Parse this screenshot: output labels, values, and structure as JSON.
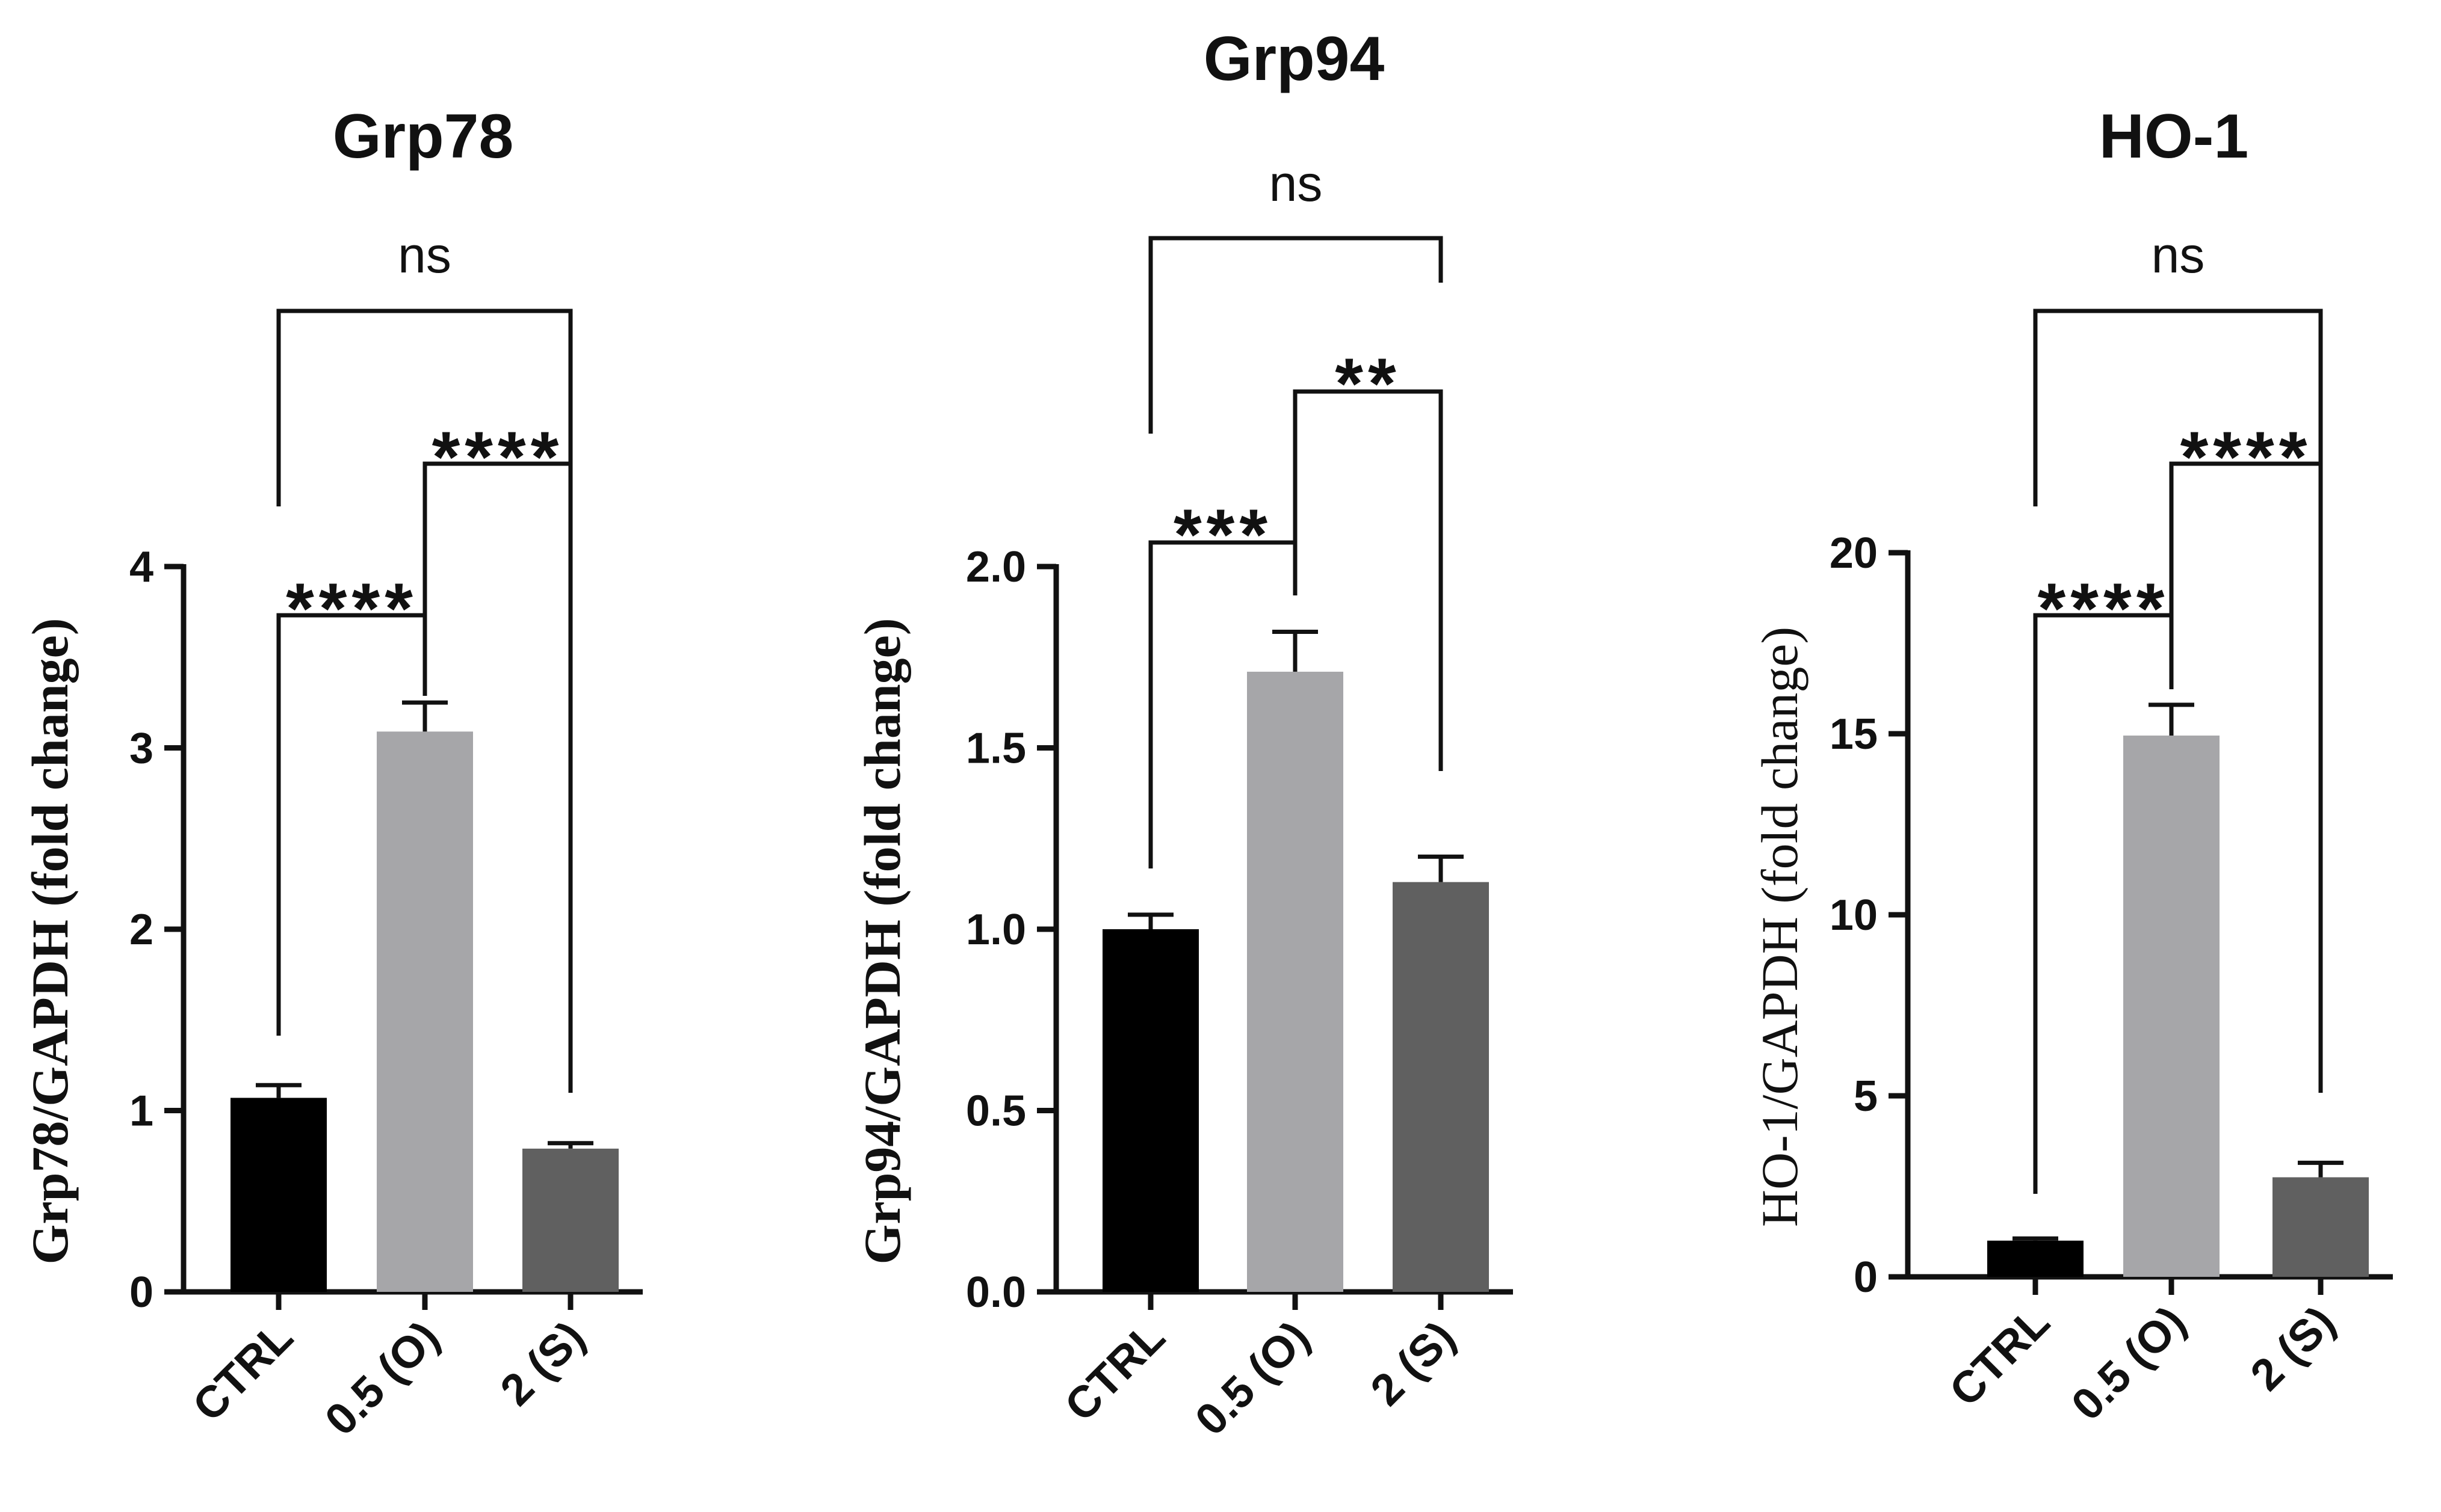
{
  "chart_data": [
    {
      "type": "bar",
      "title": "Grp78",
      "ylabel": "Grp78/GAPDH (fold change)",
      "categories": [
        "CTRL",
        "0.5 (O)",
        "2 (S)"
      ],
      "values": [
        1.07,
        3.09,
        0.79
      ],
      "errors": [
        0.07,
        0.16,
        0.03
      ],
      "colors": [
        "#000000",
        "#a6a6a9",
        "#606060"
      ],
      "ylim": [
        0,
        4
      ],
      "yticks": [
        0,
        1,
        2,
        3,
        4
      ],
      "comparisons": [
        {
          "a": 0,
          "b": 1,
          "label": "****"
        },
        {
          "a": 1,
          "b": 2,
          "label": "****"
        },
        {
          "a": 0,
          "b": 2,
          "label": "ns"
        }
      ]
    },
    {
      "type": "bar",
      "title": "Grp94",
      "ylabel": "Grp94/GAPDH (fold change)",
      "categories": [
        "CTRL",
        "0.5 (O)",
        "2 (S)"
      ],
      "values": [
        1.0,
        1.71,
        1.13
      ],
      "errors": [
        0.04,
        0.11,
        0.07
      ],
      "colors": [
        "#000000",
        "#a6a6a9",
        "#606060"
      ],
      "ylim": [
        0,
        2.0
      ],
      "yticks": [
        "0.0",
        "0.5",
        "1.0",
        "1.5",
        "2.0"
      ],
      "comparisons": [
        {
          "a": 0,
          "b": 1,
          "label": "***"
        },
        {
          "a": 1,
          "b": 2,
          "label": "**"
        },
        {
          "a": 0,
          "b": 2,
          "label": "ns"
        }
      ]
    },
    {
      "type": "bar",
      "title": "HO-1",
      "ylabel": "HO-1/GAPDH (fold change)",
      "categories": [
        "CTRL",
        "0.5 (O)",
        "2 (S)"
      ],
      "values": [
        1.0,
        14.95,
        2.75
      ],
      "errors": [
        0.06,
        0.85,
        0.4
      ],
      "colors": [
        "#000000",
        "#a6a6a9",
        "#606060"
      ],
      "ylim": [
        0,
        20
      ],
      "yticks": [
        0,
        5,
        10,
        15,
        20
      ],
      "comparisons": [
        {
          "a": 0,
          "b": 1,
          "label": "****"
        },
        {
          "a": 1,
          "b": 2,
          "label": "****"
        },
        {
          "a": 0,
          "b": 2,
          "label": "ns"
        }
      ]
    }
  ]
}
